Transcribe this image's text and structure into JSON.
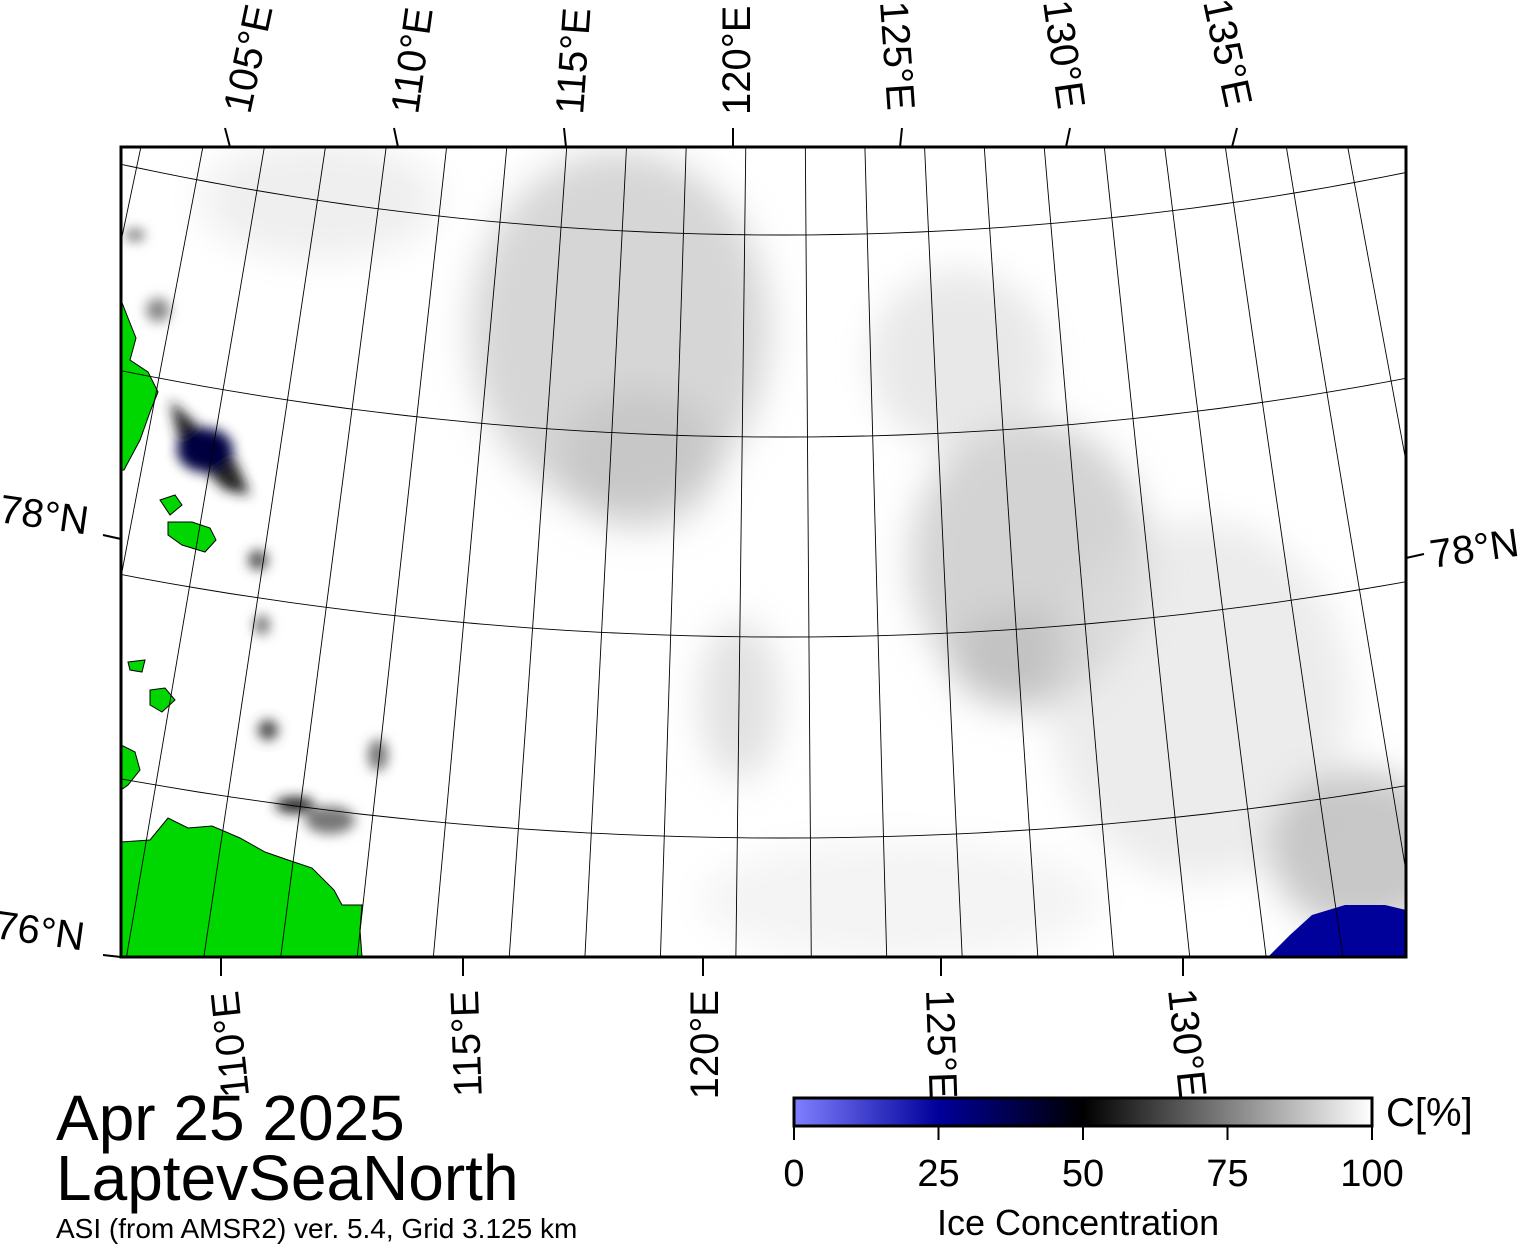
{
  "map": {
    "date": "Apr 25 2025",
    "region": "LaptevSeaNorth",
    "source": "ASI (from AMSR2) ver. 5.4,  Grid 3.125 km",
    "land_color": "#00d600",
    "ocean_color": "#ffffff",
    "open_water_color": "#00009a",
    "graticule_color": "#000000",
    "top_longitude_labels": [
      "105°E",
      "110°E",
      "115°E",
      "120°E",
      "125°E",
      "130°E",
      "135°E"
    ],
    "bottom_longitude_labels": [
      "110°E",
      "115°E",
      "120°E",
      "125°E",
      "130°E"
    ],
    "left_latitude_labels": [
      "78°N",
      "76°N"
    ],
    "right_latitude_labels": [
      "78°N"
    ]
  },
  "colorbar": {
    "title": "Ice Concentration",
    "unit": "C[%]",
    "ticks": [
      "0",
      "25",
      "50",
      "75",
      "100"
    ],
    "tick_values": [
      0,
      25,
      50,
      75,
      100
    ],
    "range": [
      0,
      100
    ],
    "colors": [
      "#8080ff",
      "#00009a",
      "#000000",
      "#808080",
      "#ffffff"
    ]
  }
}
